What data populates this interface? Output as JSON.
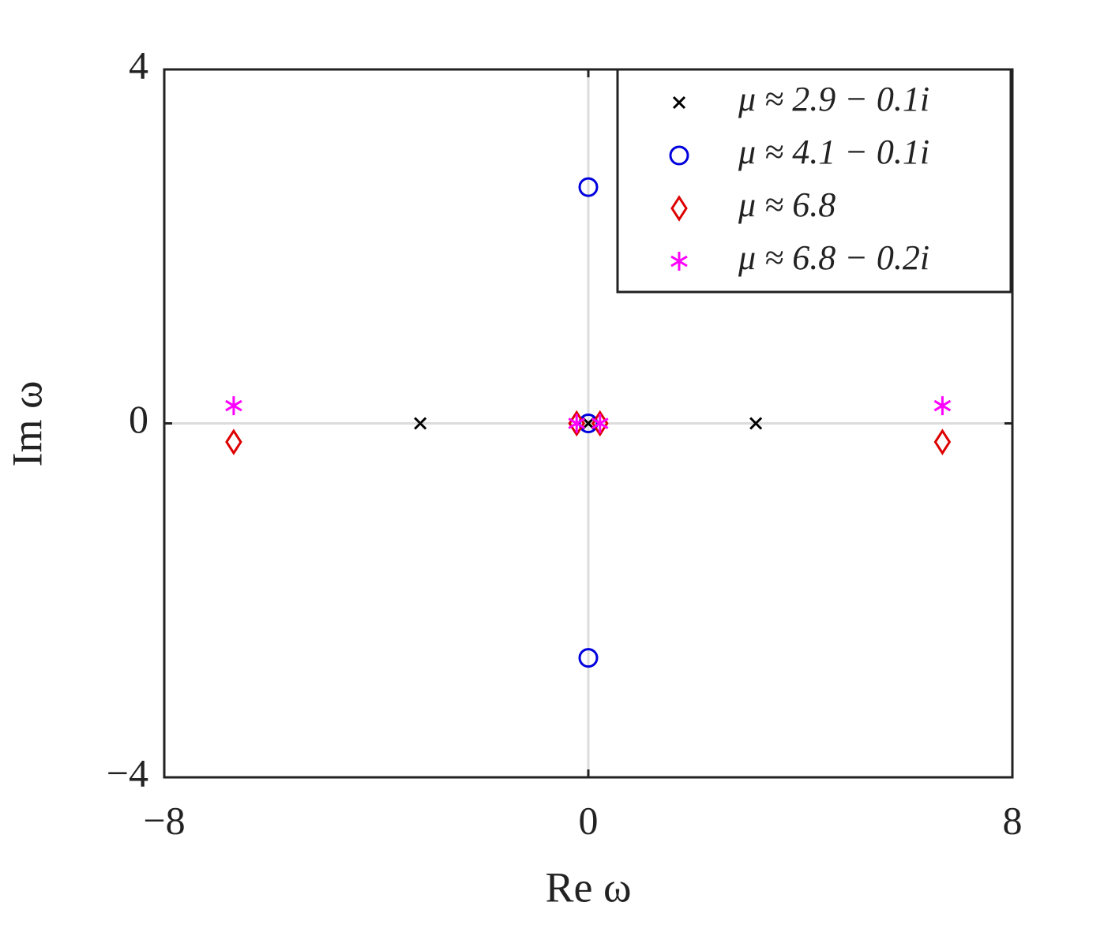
{
  "chart_data": {
    "type": "scatter",
    "xlabel": "Re ω",
    "ylabel": "Im ω",
    "xlim": [
      -8,
      8
    ],
    "ylim": [
      -4,
      4
    ],
    "xticks": [
      {
        "value": -8,
        "label": "−8"
      },
      0,
      8
    ],
    "yticks": [
      {
        "value": -4,
        "label": "−4"
      },
      0,
      4
    ],
    "zero_lines": true,
    "legend": "upper-right",
    "series": [
      {
        "name": "μ ≈ 2.9 − 0.1i",
        "color": "#000000",
        "marker": "x",
        "x": [
          -3.17,
          0,
          3.16
        ],
        "values": [
          0,
          0,
          0
        ]
      },
      {
        "name": "μ ≈ 4.1 − 0.1i",
        "color": "#0000dd",
        "marker": "o",
        "x": [
          0,
          0,
          0
        ],
        "values": [
          2.67,
          0,
          -2.65
        ]
      },
      {
        "name": "μ ≈ 6.8",
        "color": "#dd0000",
        "marker": "d",
        "x": [
          -6.69,
          -0.22,
          0.22,
          6.68
        ],
        "values": [
          -0.21,
          0,
          0,
          -0.21
        ]
      },
      {
        "name": "μ ≈ 6.8 − 0.2i",
        "color": "#ff00ff",
        "marker": "*",
        "x": [
          -6.69,
          -0.22,
          0.22,
          6.68
        ],
        "values": [
          0.2,
          0,
          0,
          0.2
        ]
      }
    ]
  }
}
